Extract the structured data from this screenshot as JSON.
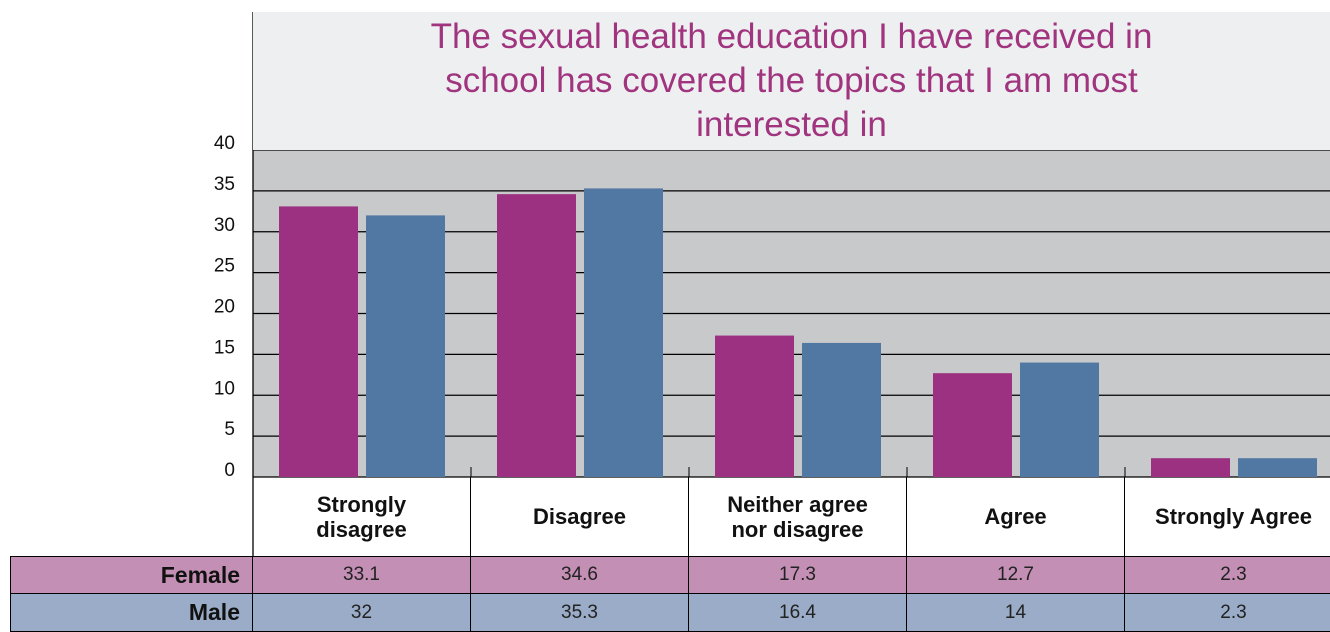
{
  "chart_data": {
    "type": "bar",
    "title": "The sexual health education I have received in school has covered the topics that I am most interested in",
    "categories": [
      "Strongly disagree",
      "Disagree",
      "Neither agree nor disagree",
      "Agree",
      "Strongly Agree"
    ],
    "series": [
      {
        "name": "Female",
        "color": "#9b3180",
        "values": [
          33.1,
          34.6,
          17.3,
          12.7,
          2.3
        ]
      },
      {
        "name": "Male",
        "color": "#5177a3",
        "values": [
          32,
          35.3,
          16.4,
          14,
          2.3
        ]
      }
    ],
    "ylim": [
      0,
      40
    ],
    "yticks": [
      0,
      5,
      10,
      15,
      20,
      25,
      30,
      35,
      40
    ],
    "grid": true
  }
}
